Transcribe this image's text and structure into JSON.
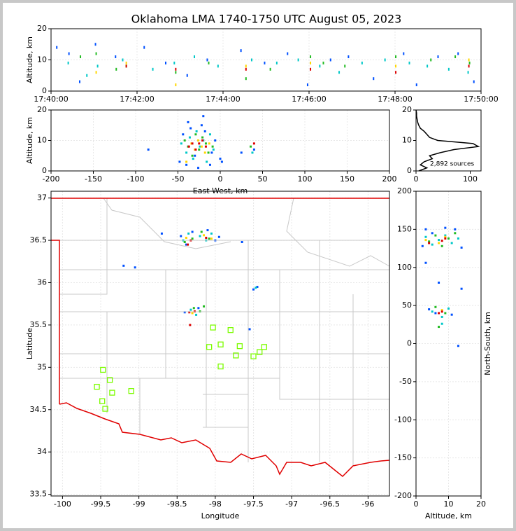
{
  "chart_data": [
    {
      "type": "scatter",
      "title": "Oklahoma LMA 1740-1750 UTC August 05, 2023",
      "ylabel": "Altitude, km",
      "grid": true,
      "xlim": [
        63600,
        64200
      ],
      "xticks": [
        {
          "value": 63600,
          "label": "17:40:00"
        },
        {
          "value": 63720,
          "label": "17:42:00"
        },
        {
          "value": 63840,
          "label": "17:44:00"
        },
        {
          "value": 63960,
          "label": "17:46:00"
        },
        {
          "value": 64080,
          "label": "17:48:00"
        },
        {
          "value": 64200,
          "label": "17:50:00"
        }
      ],
      "ylim": [
        0,
        20
      ],
      "yticks": [
        0,
        10,
        20
      ],
      "series": [
        {
          "color": "#0050ff",
          "x": [
            63608,
            63625,
            63640,
            63662,
            63690,
            63730,
            63760,
            63790,
            63818,
            63865,
            63898,
            63930,
            63958,
            63990,
            64015,
            64050,
            64092,
            64110,
            64140,
            64168,
            64190
          ],
          "y": [
            14,
            12,
            3,
            15,
            11,
            14,
            9,
            5,
            10,
            13,
            9,
            12,
            2,
            10,
            11,
            4,
            12,
            2,
            11,
            12,
            3
          ]
        },
        {
          "color": "#00c8c8",
          "x": [
            63624,
            63650,
            63665,
            63700,
            63742,
            63772,
            63800,
            63833,
            63880,
            63915,
            63945,
            63975,
            64002,
            64034,
            64066,
            64100,
            64125,
            64155,
            64182
          ],
          "y": [
            9,
            5,
            8,
            10,
            7,
            9,
            11,
            8,
            10,
            9,
            10,
            8,
            6,
            9,
            10,
            9,
            8,
            7,
            6
          ]
        },
        {
          "color": "#22bb22",
          "x": [
            63641,
            63663,
            63691,
            63705,
            63774,
            63820,
            63872,
            63906,
            63962,
            63980,
            64010,
            64081,
            64130,
            64164,
            64184
          ],
          "y": [
            11,
            12,
            7,
            8,
            6,
            9,
            4,
            7,
            11,
            9,
            8,
            11,
            10,
            11,
            9
          ]
        },
        {
          "color": "#ffd700",
          "x": [
            63663,
            63705,
            63774,
            63872,
            63962,
            64081,
            64183
          ],
          "y": [
            6,
            9,
            2,
            8,
            9,
            8,
            10
          ]
        },
        {
          "color": "#dd0000",
          "x": [
            63705,
            63774,
            63872,
            63962,
            64081,
            64183
          ],
          "y": [
            8,
            7,
            7,
            7,
            6,
            8
          ]
        }
      ]
    },
    {
      "type": "scatter",
      "xlabel": "East-West, km",
      "ylabel": "Altitude, km",
      "grid": true,
      "xlim": [
        -200,
        200
      ],
      "xticks": [
        -200,
        -150,
        -100,
        -50,
        0,
        50,
        100,
        150,
        200
      ],
      "ylim": [
        0,
        20
      ],
      "yticks": [
        0,
        10,
        20
      ],
      "series": [
        {
          "color": "#0050ff",
          "x": [
            -85,
            -48,
            -44,
            -40,
            -35,
            -30,
            -26,
            -22,
            -18,
            -12,
            -6,
            0,
            2,
            25,
            40,
            -38,
            -20,
            -10
          ],
          "y": [
            7,
            3,
            12,
            2,
            14,
            5,
            1,
            15,
            13,
            2,
            10,
            4,
            3,
            6,
            7,
            16,
            18,
            6
          ]
        },
        {
          "color": "#00c8c8",
          "x": [
            -46,
            -40,
            -36,
            -32,
            -28,
            -24,
            -20,
            -16,
            -12,
            -8,
            38
          ],
          "y": [
            9,
            6,
            11,
            4,
            13,
            8,
            10,
            3,
            12,
            7,
            6
          ]
        },
        {
          "color": "#22bb22",
          "x": [
            -42,
            -38,
            -33,
            -29,
            -25,
            -21,
            -17,
            -14,
            -9,
            36
          ],
          "y": [
            10,
            8,
            5,
            12,
            7,
            11,
            9,
            6,
            8,
            8
          ]
        },
        {
          "color": "#ffd700",
          "x": [
            -40,
            -34,
            -30,
            -26,
            -22,
            -18,
            -13
          ],
          "y": [
            3,
            9,
            7,
            10,
            8,
            6,
            9
          ]
        },
        {
          "color": "#dd0000",
          "x": [
            -37,
            -33,
            -29,
            -25,
            -21,
            -17,
            40
          ],
          "y": [
            8,
            9,
            7,
            9,
            10,
            8,
            9
          ]
        }
      ]
    },
    {
      "type": "line",
      "annotation": "2,892 sources",
      "color": "#000000",
      "xlim": [
        0,
        120
      ],
      "xticks": [
        0,
        100
      ],
      "ylim": [
        0,
        20
      ],
      "yticks": [
        0,
        10,
        20
      ],
      "x": [
        5,
        20,
        8,
        15,
        30,
        25,
        45,
        70,
        115,
        105,
        40,
        25,
        20,
        15,
        8,
        5,
        3,
        2,
        1,
        1,
        0
      ],
      "y": [
        0,
        1,
        2,
        3,
        4,
        5,
        6,
        7,
        8,
        9,
        10,
        11,
        12,
        13,
        14,
        15,
        16,
        17,
        18,
        19,
        20
      ]
    },
    {
      "type": "scatter",
      "xlabel": "Longitude",
      "ylabel": "Latitude",
      "grid": true,
      "xlim": [
        -100.15,
        -95.72
      ],
      "xticks": [
        -100.0,
        -99.5,
        -99.0,
        -98.5,
        -98.0,
        -97.5,
        -97.0,
        -96.5,
        -96.0
      ],
      "ylim": [
        33.48,
        37.08
      ],
      "yticks": [
        33.5,
        34.0,
        34.5,
        35.0,
        35.5,
        36.0,
        36.5,
        37.0
      ],
      "series": [
        {
          "color": "#0050ff",
          "x": [
            -98.45,
            -98.38,
            -98.3,
            -98.1,
            -98.0,
            -97.95,
            -98.4,
            -98.22,
            -97.45,
            -97.5,
            -99.2,
            -98.7,
            -97.65,
            -97.55,
            -99.05
          ],
          "y": [
            36.55,
            36.45,
            36.6,
            36.62,
            36.5,
            36.54,
            35.65,
            35.7,
            35.95,
            35.92,
            36.2,
            36.58,
            36.48,
            35.45,
            36.18
          ]
        },
        {
          "color": "#00c8c8",
          "x": [
            -98.42,
            -98.35,
            -98.2,
            -98.12,
            -98.05,
            -98.32,
            -98.25,
            -97.47
          ],
          "y": [
            36.5,
            36.58,
            36.55,
            36.5,
            36.58,
            35.68,
            35.62,
            35.94
          ]
        },
        {
          "color": "#22bb22",
          "x": [
            -98.4,
            -98.3,
            -98.18,
            -98.08,
            -98.28,
            -98.2,
            -98.15
          ],
          "y": [
            36.48,
            36.52,
            36.6,
            36.52,
            35.7,
            35.66,
            35.72
          ]
        },
        {
          "color": "#ffd700",
          "x": [
            -98.38,
            -98.15,
            -98.05,
            -98.3
          ],
          "y": [
            36.53,
            36.56,
            36.52,
            35.64
          ]
        },
        {
          "color": "#dd0000",
          "x": [
            -98.36,
            -98.32,
            -98.12,
            -98.34,
            -98.27,
            -98.33
          ],
          "y": [
            36.45,
            36.5,
            36.53,
            35.65,
            35.66,
            35.5
          ]
        }
      ],
      "stations": {
        "color": "#7cfc00",
        "x": [
          -99.47,
          -99.38,
          -99.55,
          -99.35,
          -99.1,
          -99.48,
          -99.44,
          -98.03,
          -97.8,
          -98.08,
          -97.93,
          -97.68,
          -97.36,
          -97.42,
          -97.73,
          -97.5,
          -97.93
        ],
        "y": [
          34.97,
          34.85,
          34.77,
          34.7,
          34.72,
          34.6,
          34.51,
          35.47,
          35.44,
          35.24,
          35.27,
          35.25,
          35.24,
          35.18,
          35.14,
          35.13,
          35.01
        ]
      }
    },
    {
      "type": "scatter",
      "xlabel": "Altitude, km",
      "ylabel": "North-South, km",
      "ylabel_side": "right",
      "grid": true,
      "xlim": [
        0,
        20
      ],
      "xticks": [
        0,
        10,
        20
      ],
      "ylim": [
        -200,
        200
      ],
      "yticks": [
        -200,
        -150,
        -100,
        -50,
        0,
        50,
        100,
        150,
        200
      ],
      "series": [
        {
          "color": "#0050ff",
          "x": [
            2,
            3,
            5,
            9,
            12,
            14,
            4,
            6,
            11,
            7,
            14,
            3,
            13
          ],
          "y": [
            128,
            150,
            145,
            152,
            150,
            126,
            45,
            40,
            38,
            80,
            72,
            106,
            -3
          ]
        },
        {
          "color": "#00c8c8",
          "x": [
            3,
            5,
            7,
            9,
            11,
            13,
            5,
            8,
            10,
            8
          ],
          "y": [
            140,
            130,
            136,
            142,
            132,
            138,
            42,
            35,
            46,
            26
          ]
        },
        {
          "color": "#22bb22",
          "x": [
            4,
            6,
            8,
            10,
            12,
            6,
            9,
            7
          ],
          "y": [
            134,
            142,
            128,
            138,
            145,
            48,
            40,
            22
          ]
        },
        {
          "color": "#ffd700",
          "x": [
            3,
            7,
            9,
            8
          ],
          "y": [
            136,
            132,
            140,
            44
          ]
        },
        {
          "color": "#dd0000",
          "x": [
            4,
            8,
            9,
            7,
            8
          ],
          "y": [
            132,
            135,
            138,
            40,
            42
          ]
        }
      ]
    }
  ]
}
